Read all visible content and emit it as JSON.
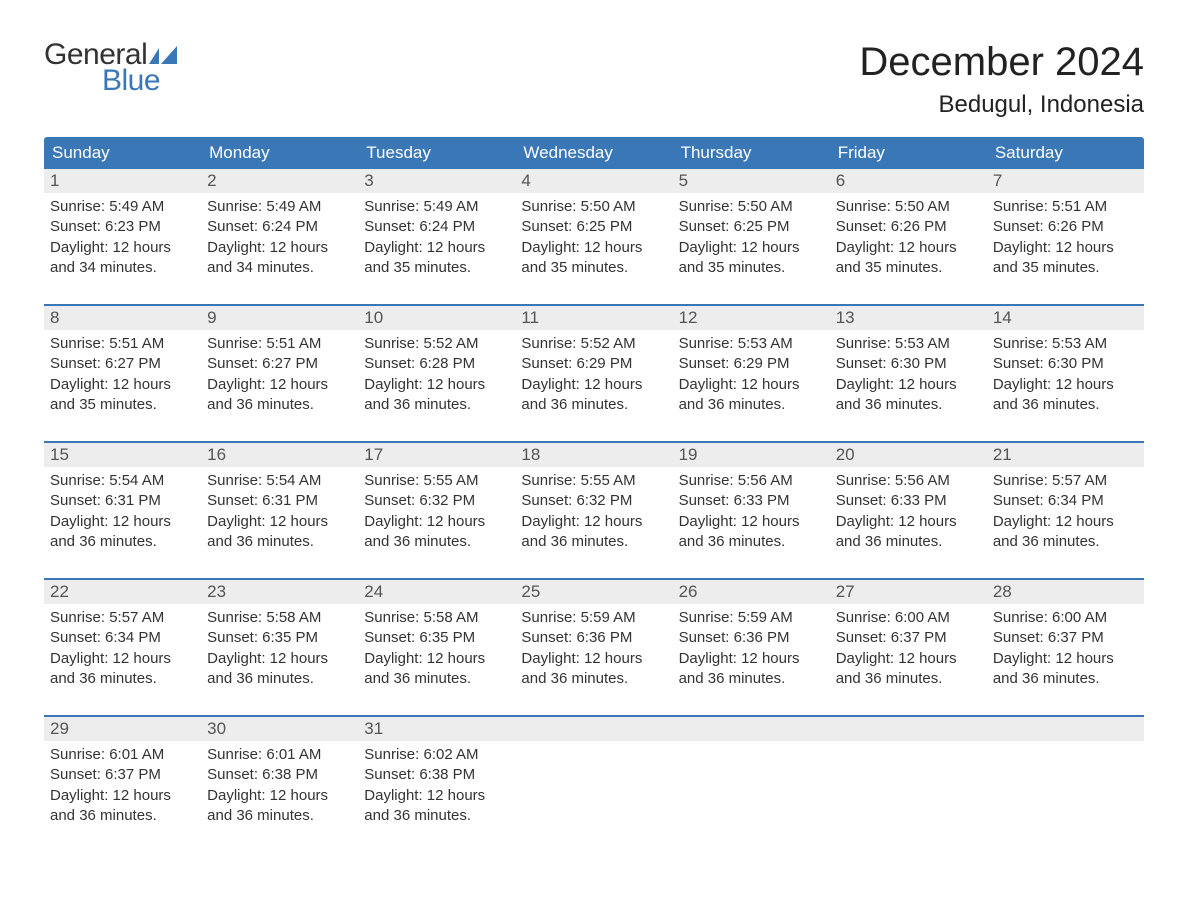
{
  "brand": {
    "word1": "General",
    "word2": "Blue",
    "word1_color": "#333333",
    "word2_color": "#3a77b7",
    "flag_color": "#3a77b7"
  },
  "title": "December 2024",
  "location": "Bedugul, Indonesia",
  "colors": {
    "header_bg": "#3a77b7",
    "header_text": "#ffffff",
    "week_divider": "#3a77b7",
    "daynum_bg": "#ededed",
    "body_text": "#333333",
    "page_bg": "#ffffff"
  },
  "typography": {
    "title_fontsize": 40,
    "location_fontsize": 24,
    "weekday_fontsize": 17,
    "daynum_fontsize": 17,
    "body_fontsize": 15,
    "logo_fontsize": 30
  },
  "weekdays": [
    "Sunday",
    "Monday",
    "Tuesday",
    "Wednesday",
    "Thursday",
    "Friday",
    "Saturday"
  ],
  "labels": {
    "sunrise": "Sunrise",
    "sunset": "Sunset",
    "daylight": "Daylight"
  },
  "weeks": [
    [
      {
        "n": 1,
        "sunrise": "5:49 AM",
        "sunset": "6:23 PM",
        "daylight": "12 hours and 34 minutes."
      },
      {
        "n": 2,
        "sunrise": "5:49 AM",
        "sunset": "6:24 PM",
        "daylight": "12 hours and 34 minutes."
      },
      {
        "n": 3,
        "sunrise": "5:49 AM",
        "sunset": "6:24 PM",
        "daylight": "12 hours and 35 minutes."
      },
      {
        "n": 4,
        "sunrise": "5:50 AM",
        "sunset": "6:25 PM",
        "daylight": "12 hours and 35 minutes."
      },
      {
        "n": 5,
        "sunrise": "5:50 AM",
        "sunset": "6:25 PM",
        "daylight": "12 hours and 35 minutes."
      },
      {
        "n": 6,
        "sunrise": "5:50 AM",
        "sunset": "6:26 PM",
        "daylight": "12 hours and 35 minutes."
      },
      {
        "n": 7,
        "sunrise": "5:51 AM",
        "sunset": "6:26 PM",
        "daylight": "12 hours and 35 minutes."
      }
    ],
    [
      {
        "n": 8,
        "sunrise": "5:51 AM",
        "sunset": "6:27 PM",
        "daylight": "12 hours and 35 minutes."
      },
      {
        "n": 9,
        "sunrise": "5:51 AM",
        "sunset": "6:27 PM",
        "daylight": "12 hours and 36 minutes."
      },
      {
        "n": 10,
        "sunrise": "5:52 AM",
        "sunset": "6:28 PM",
        "daylight": "12 hours and 36 minutes."
      },
      {
        "n": 11,
        "sunrise": "5:52 AM",
        "sunset": "6:29 PM",
        "daylight": "12 hours and 36 minutes."
      },
      {
        "n": 12,
        "sunrise": "5:53 AM",
        "sunset": "6:29 PM",
        "daylight": "12 hours and 36 minutes."
      },
      {
        "n": 13,
        "sunrise": "5:53 AM",
        "sunset": "6:30 PM",
        "daylight": "12 hours and 36 minutes."
      },
      {
        "n": 14,
        "sunrise": "5:53 AM",
        "sunset": "6:30 PM",
        "daylight": "12 hours and 36 minutes."
      }
    ],
    [
      {
        "n": 15,
        "sunrise": "5:54 AM",
        "sunset": "6:31 PM",
        "daylight": "12 hours and 36 minutes."
      },
      {
        "n": 16,
        "sunrise": "5:54 AM",
        "sunset": "6:31 PM",
        "daylight": "12 hours and 36 minutes."
      },
      {
        "n": 17,
        "sunrise": "5:55 AM",
        "sunset": "6:32 PM",
        "daylight": "12 hours and 36 minutes."
      },
      {
        "n": 18,
        "sunrise": "5:55 AM",
        "sunset": "6:32 PM",
        "daylight": "12 hours and 36 minutes."
      },
      {
        "n": 19,
        "sunrise": "5:56 AM",
        "sunset": "6:33 PM",
        "daylight": "12 hours and 36 minutes."
      },
      {
        "n": 20,
        "sunrise": "5:56 AM",
        "sunset": "6:33 PM",
        "daylight": "12 hours and 36 minutes."
      },
      {
        "n": 21,
        "sunrise": "5:57 AM",
        "sunset": "6:34 PM",
        "daylight": "12 hours and 36 minutes."
      }
    ],
    [
      {
        "n": 22,
        "sunrise": "5:57 AM",
        "sunset": "6:34 PM",
        "daylight": "12 hours and 36 minutes."
      },
      {
        "n": 23,
        "sunrise": "5:58 AM",
        "sunset": "6:35 PM",
        "daylight": "12 hours and 36 minutes."
      },
      {
        "n": 24,
        "sunrise": "5:58 AM",
        "sunset": "6:35 PM",
        "daylight": "12 hours and 36 minutes."
      },
      {
        "n": 25,
        "sunrise": "5:59 AM",
        "sunset": "6:36 PM",
        "daylight": "12 hours and 36 minutes."
      },
      {
        "n": 26,
        "sunrise": "5:59 AM",
        "sunset": "6:36 PM",
        "daylight": "12 hours and 36 minutes."
      },
      {
        "n": 27,
        "sunrise": "6:00 AM",
        "sunset": "6:37 PM",
        "daylight": "12 hours and 36 minutes."
      },
      {
        "n": 28,
        "sunrise": "6:00 AM",
        "sunset": "6:37 PM",
        "daylight": "12 hours and 36 minutes."
      }
    ],
    [
      {
        "n": 29,
        "sunrise": "6:01 AM",
        "sunset": "6:37 PM",
        "daylight": "12 hours and 36 minutes."
      },
      {
        "n": 30,
        "sunrise": "6:01 AM",
        "sunset": "6:38 PM",
        "daylight": "12 hours and 36 minutes."
      },
      {
        "n": 31,
        "sunrise": "6:02 AM",
        "sunset": "6:38 PM",
        "daylight": "12 hours and 36 minutes."
      },
      null,
      null,
      null,
      null
    ]
  ]
}
